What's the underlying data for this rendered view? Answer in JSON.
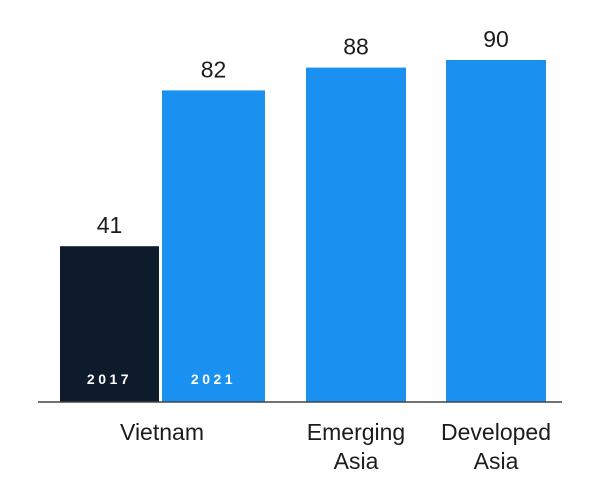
{
  "chart_data": {
    "type": "bar",
    "title": "",
    "xlabel": "",
    "ylabel": "",
    "ylim": [
      0,
      90
    ],
    "grid": false,
    "legend": "none",
    "bars": [
      {
        "group": "Vietnam",
        "year": "2017",
        "value": 41,
        "value_label": "41",
        "color": "#0d1b2a"
      },
      {
        "group": "Vietnam",
        "year": "2021",
        "value": 82,
        "value_label": "82",
        "color": "#1a91f0"
      },
      {
        "group": "Emerging Asia",
        "year": "",
        "value": 88,
        "value_label": "88",
        "color": "#1a91f0"
      },
      {
        "group": "Developed Asia",
        "year": "",
        "value": 90,
        "value_label": "90",
        "color": "#1a91f0"
      }
    ],
    "categories": [
      {
        "lines": [
          "Vietnam"
        ]
      },
      {
        "lines": [
          "Emerging",
          "Asia"
        ]
      },
      {
        "lines": [
          "Developed",
          "Asia"
        ]
      }
    ]
  }
}
